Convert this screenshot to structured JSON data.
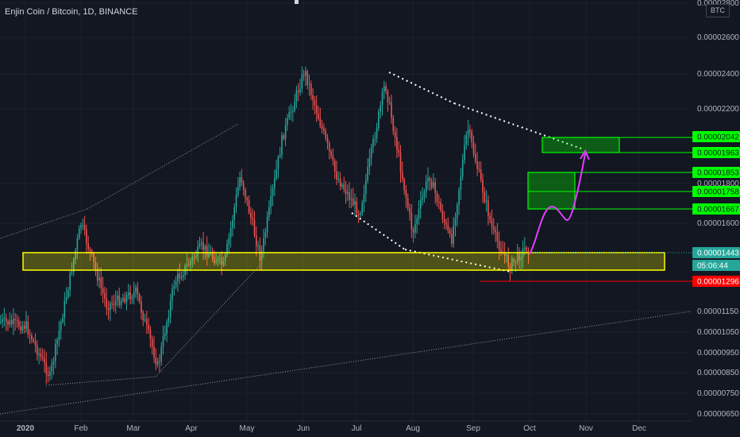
{
  "header": {
    "symbol_title": "Enjin Coin / Bitcoin, 1D, BINANCE",
    "currency": "BTC"
  },
  "colors": {
    "background": "#131722",
    "up": "#26a69a",
    "down": "#ef5350",
    "support_zone": "#ffff00",
    "target_zone": "#00ff00",
    "projection": "#e040fb",
    "stop": "#ff0000",
    "price_label": "#26a69a"
  },
  "chart_data": {
    "type": "candlestick",
    "title": "Enjin Coin / Bitcoin, 1D, BINANCE",
    "y_axis": {
      "unit": "BTC",
      "ylim": [
        6.2e-06,
        2.8e-06
      ],
      "ticks": [
        "0.00002800",
        "0.00002600",
        "0.00002400",
        "0.00002200",
        "0.00001800",
        "0.00001600",
        "0.00001150",
        "0.00001050",
        "0.00000950",
        "0.00000850",
        "0.00000750",
        "0.00000650"
      ]
    },
    "x_axis": {
      "ticks": [
        "2020",
        "Feb",
        "Mar",
        "Apr",
        "May",
        "Jun",
        "Jul",
        "Aug",
        "Sep",
        "Oct",
        "Nov",
        "Dec"
      ]
    },
    "price_path": [
      [
        "2019-12-18",
        1.1e-05
      ],
      [
        "2020-01-01",
        1.08e-05
      ],
      [
        "2020-01-14",
        8.3e-06
      ],
      [
        "2020-01-31",
        1.6e-05
      ],
      [
        "2020-02-14",
        1.18e-05
      ],
      [
        "2020-03-01",
        1.25e-05
      ],
      [
        "2020-03-13",
        8.8e-06
      ],
      [
        "2020-03-22",
        1.3e-05
      ],
      [
        "2020-04-06",
        1.48e-05
      ],
      [
        "2020-04-18",
        1.38e-05
      ],
      [
        "2020-04-27",
        1.85e-05
      ],
      [
        "2020-05-08",
        1.42e-05
      ],
      [
        "2020-05-20",
        2.05e-05
      ],
      [
        "2020-06-01",
        2.42e-05
      ],
      [
        "2020-06-18",
        1.85e-05
      ],
      [
        "2020-07-01",
        1.65e-05
      ],
      [
        "2020-07-15",
        2.35e-05
      ],
      [
        "2020-07-30",
        1.55e-05
      ],
      [
        "2020-08-08",
        1.85e-05
      ],
      [
        "2020-08-20",
        1.5e-05
      ],
      [
        "2020-08-29",
        2.1e-05
      ],
      [
        "2020-09-12",
        1.55e-05
      ],
      [
        "2020-09-21",
        1.38e-05
      ],
      [
        "2020-09-30",
        1.48e-05
      ],
      [
        "2020-10-03",
        1.44e-05
      ]
    ],
    "price_labels": [
      {
        "value": "0.00002042",
        "color": "#00ff00",
        "text_color": "#131722"
      },
      {
        "value": "0.00001963",
        "color": "#00ff00",
        "text_color": "#131722"
      },
      {
        "value": "0.00001853",
        "color": "#00ff00",
        "text_color": "#131722"
      },
      {
        "value": "0.00001758",
        "color": "#00ff00",
        "text_color": "#131722"
      },
      {
        "value": "0.00001667",
        "color": "#00ff00",
        "text_color": "#131722"
      },
      {
        "value": "0.00001443",
        "color": "#26a69a",
        "text_color": "#ffffff"
      },
      {
        "value": "05:06:44",
        "color": "#26a69a",
        "text_color": "#ffffff"
      },
      {
        "value": "0.00001296",
        "color": "#ff0000",
        "text_color": "#ffffff"
      }
    ],
    "annotations": [
      {
        "type": "rectangle",
        "name": "support-zone",
        "color": "#ffff00"
      },
      {
        "type": "rectangle",
        "name": "target-zone-1",
        "color": "#00ff00"
      },
      {
        "type": "rectangle",
        "name": "target-zone-2",
        "color": "#00ff00"
      },
      {
        "type": "projection-curve",
        "color": "#e040fb"
      },
      {
        "type": "trendline",
        "name": "falling-wedge-top",
        "style": "dotted"
      },
      {
        "type": "trendline",
        "name": "falling-wedge-bottom",
        "style": "dotted"
      },
      {
        "type": "horizontal-line",
        "name": "stop-level",
        "color": "#ff0000"
      }
    ]
  }
}
